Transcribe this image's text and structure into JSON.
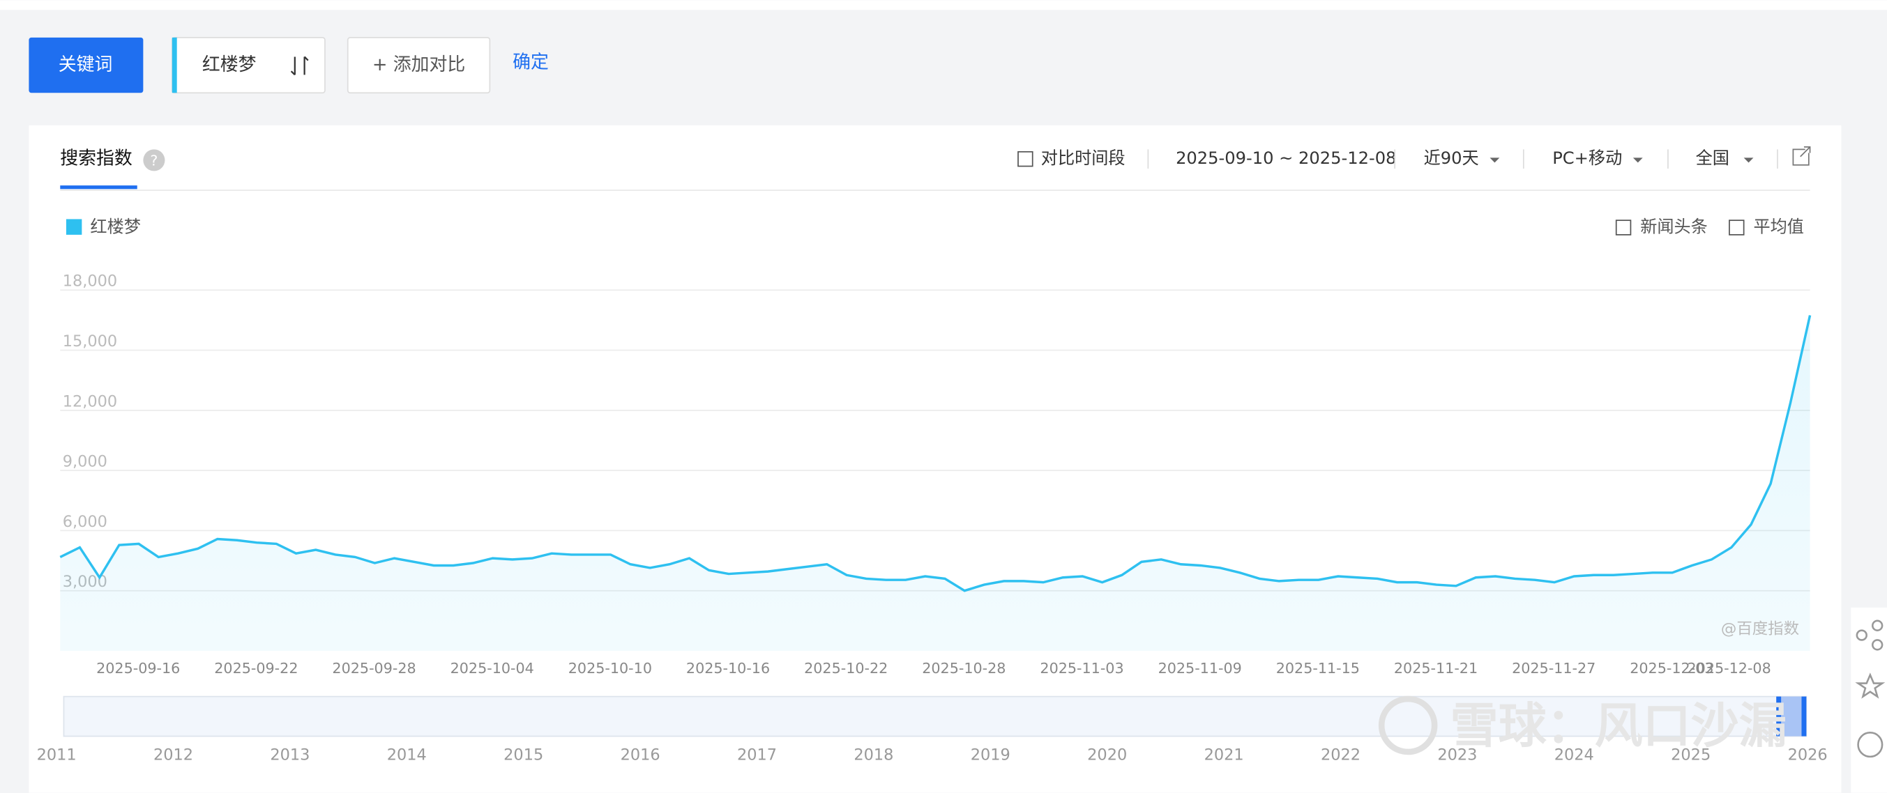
{
  "toolbar": {
    "keyword_button": "关键词",
    "keyword": "红楼梦",
    "add_compare": "+ 添加对比",
    "confirm": "确定"
  },
  "panel": {
    "tab": "搜索指数",
    "help": "?",
    "compare_period": "对比时间段",
    "date_range": "2025-09-10 ~ 2025-12-08",
    "period": "近90天",
    "device": "PC+移动",
    "region": "全国",
    "news": "新闻头条",
    "average": "平均值",
    "source": "@百度指数"
  },
  "chart_data": {
    "type": "line",
    "categories": [
      null,
      null,
      null,
      null,
      null,
      null,
      "2025-09-16",
      null,
      null,
      null,
      null,
      null,
      "2025-09-22",
      null,
      null,
      null,
      null,
      null,
      "2025-09-28",
      null,
      null,
      null,
      null,
      null,
      "2025-10-04",
      null,
      null,
      null,
      null,
      null,
      "2025-10-10",
      null,
      null,
      null,
      null,
      null,
      "2025-10-16",
      null,
      null,
      null,
      null,
      null,
      "2025-10-22",
      null,
      null,
      null,
      null,
      null,
      "2025-10-28",
      null,
      null,
      null,
      null,
      null,
      "2025-11-03",
      null,
      null,
      null,
      null,
      null,
      "2025-11-09",
      null,
      null,
      null,
      null,
      null,
      "2025-11-15",
      null,
      null,
      null,
      null,
      null,
      "2025-11-21",
      null,
      null,
      null,
      null,
      null,
      "2025-11-27",
      null,
      null,
      null,
      null,
      null,
      "2025-12-03",
      null,
      null,
      null,
      null,
      "2025-12-08"
    ],
    "series": [
      {
        "name": "红楼梦",
        "color": "#2ec0f0",
        "values": [
          4680,
          5160,
          3660,
          5280,
          5340,
          4680,
          4860,
          5100,
          5580,
          5520,
          5400,
          5340,
          4860,
          5040,
          4800,
          4680,
          4380,
          4620,
          4440,
          4260,
          4260,
          4380,
          4620,
          4560,
          4620,
          4860,
          4800,
          4800,
          4800,
          4320,
          4140,
          4320,
          4620,
          4020,
          3840,
          3900,
          3960,
          4080,
          4200,
          4320,
          3780,
          3600,
          3540,
          3540,
          3720,
          3600,
          3000,
          3300,
          3480,
          3480,
          3420,
          3660,
          3720,
          3420,
          3780,
          4440,
          4560,
          4320,
          4260,
          4140,
          3900,
          3600,
          3480,
          3540,
          3540,
          3720,
          3660,
          3600,
          3420,
          3420,
          3300,
          3240,
          3660,
          3720,
          3600,
          3540,
          3420,
          3720,
          3780,
          3780,
          3840,
          3900,
          3900,
          4260,
          4560,
          5160,
          6300,
          8340,
          12360,
          16740
        ]
      }
    ],
    "ylim": [
      0,
      18000
    ],
    "yticks": [
      {
        "value": 3000,
        "label": "3,000"
      },
      {
        "value": 6000,
        "label": "6,000"
      },
      {
        "value": 9000,
        "label": "9,000"
      },
      {
        "value": 12000,
        "label": "12,000"
      },
      {
        "value": 15000,
        "label": "15,000"
      },
      {
        "value": 18000,
        "label": "18,000"
      }
    ],
    "grid": true
  },
  "navigator": {
    "years": [
      "2011",
      "2012",
      "2013",
      "2014",
      "2015",
      "2016",
      "2017",
      "2018",
      "2019",
      "2020",
      "2021",
      "2022",
      "2023",
      "2024",
      "2025",
      "2026"
    ]
  },
  "watermark": "雪球：风口沙漏"
}
